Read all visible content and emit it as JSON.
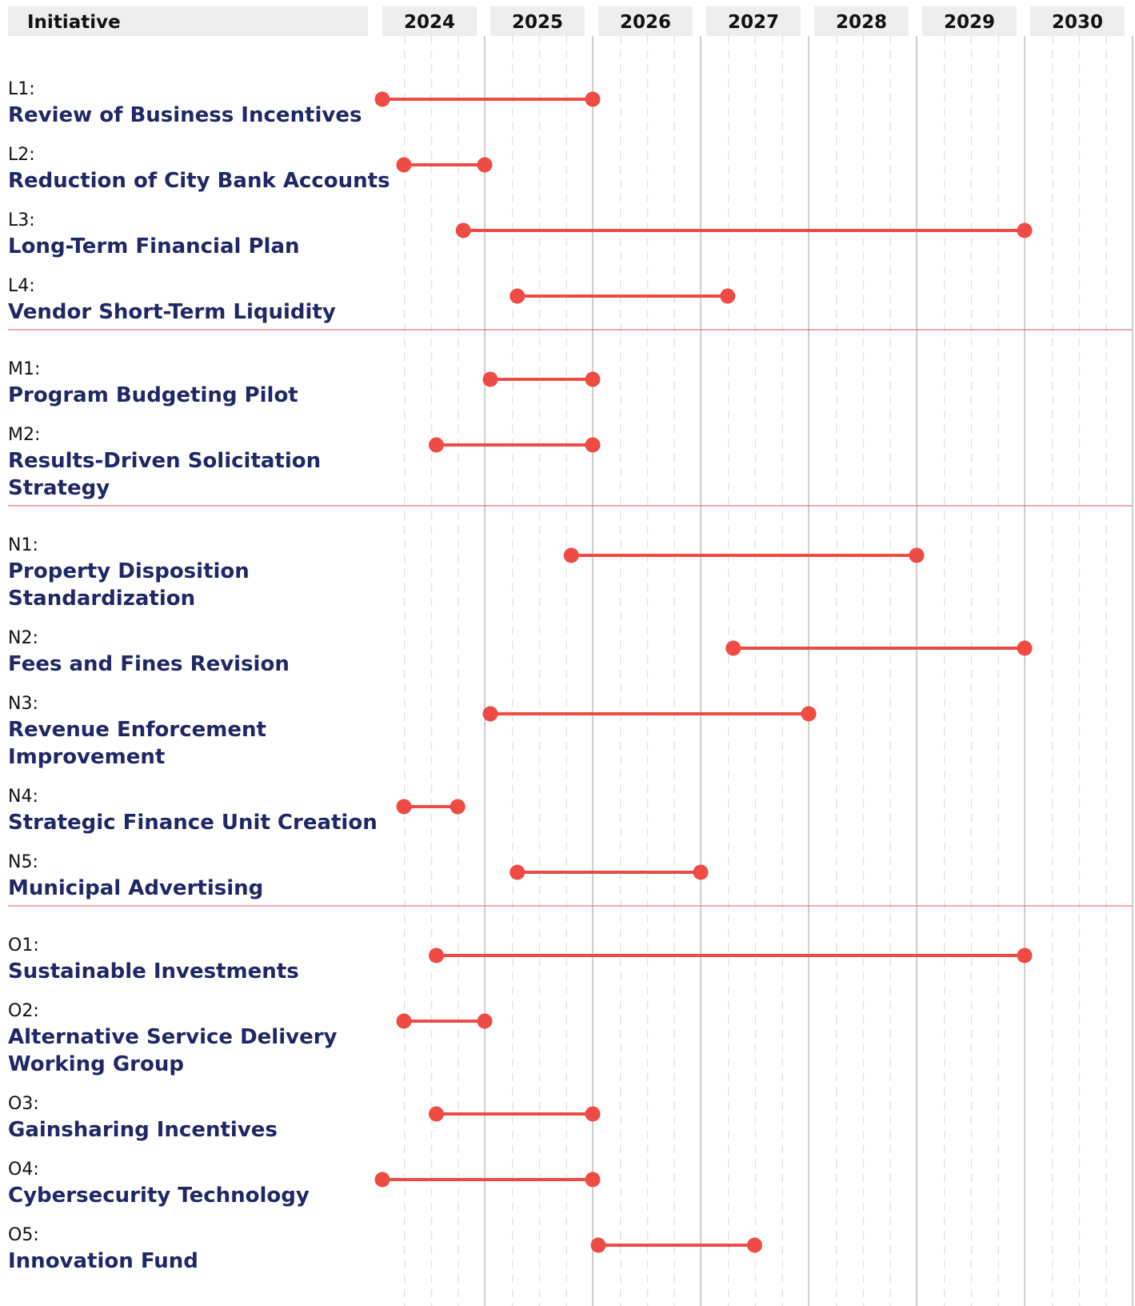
{
  "chart_data": {
    "type": "timeline",
    "header_label": "Initiative",
    "years": [
      "2024",
      "2025",
      "2026",
      "2027",
      "2028",
      "2029",
      "2030"
    ],
    "colors": {
      "accent": "#ef4b45",
      "name_text": "#1f2766",
      "header_bg": "#eeeeee",
      "year_line": "#cfcfcf",
      "quarter_line": "#e4e4e4"
    },
    "groups": [
      {
        "items": [
          {
            "code": "L1:",
            "name": [
              "Review of Business Incentives"
            ],
            "start": 2024.0,
            "end": 2026.0
          },
          {
            "code": "L2:",
            "name": [
              "Reduction of City Bank Accounts"
            ],
            "start": 2024.2,
            "end": 2025.0
          },
          {
            "code": "L3:",
            "name": [
              "Long-Term Financial Plan"
            ],
            "start": 2024.75,
            "end": 2030.0
          },
          {
            "code": "L4:",
            "name": [
              "Vendor Short-Term Liquidity"
            ],
            "start": 2025.25,
            "end": 2027.25
          }
        ]
      },
      {
        "items": [
          {
            "code": "M1:",
            "name": [
              "Program Budgeting Pilot"
            ],
            "start": 2025.0,
            "end": 2026.0
          },
          {
            "code": "M2:",
            "name": [
              "Results-Driven Solicitation",
              "Strategy"
            ],
            "start": 2024.5,
            "end": 2026.0
          }
        ]
      },
      {
        "items": [
          {
            "code": "N1:",
            "name": [
              "Property Disposition",
              "Standardization"
            ],
            "start": 2025.75,
            "end": 2029.0
          },
          {
            "code": "N2:",
            "name": [
              "Fees and Fines Revision"
            ],
            "start": 2027.25,
            "end": 2030.0
          },
          {
            "code": "N3:",
            "name": [
              "Revenue Enforcement",
              "Improvement"
            ],
            "start": 2025.0,
            "end": 2028.0
          },
          {
            "code": "N4:",
            "name": [
              "Strategic Finance Unit Creation"
            ],
            "start": 2024.2,
            "end": 2024.75
          },
          {
            "code": "N5:",
            "name": [
              "Municipal Advertising"
            ],
            "start": 2025.25,
            "end": 2027.0
          }
        ]
      },
      {
        "items": [
          {
            "code": "O1:",
            "name": [
              "Sustainable Investments"
            ],
            "start": 2024.5,
            "end": 2030.0
          },
          {
            "code": "O2:",
            "name": [
              "Alternative Service Delivery",
              "Working Group"
            ],
            "start": 2024.2,
            "end": 2025.0
          },
          {
            "code": "O3:",
            "name": [
              "Gainsharing Incentives"
            ],
            "start": 2024.5,
            "end": 2026.0
          },
          {
            "code": "O4:",
            "name": [
              "Cybersecurity Technology"
            ],
            "start": 2024.0,
            "end": 2026.0
          },
          {
            "code": "O5:",
            "name": [
              "Innovation Fund"
            ],
            "start": 2026.0,
            "end": 2027.5
          }
        ]
      }
    ]
  }
}
